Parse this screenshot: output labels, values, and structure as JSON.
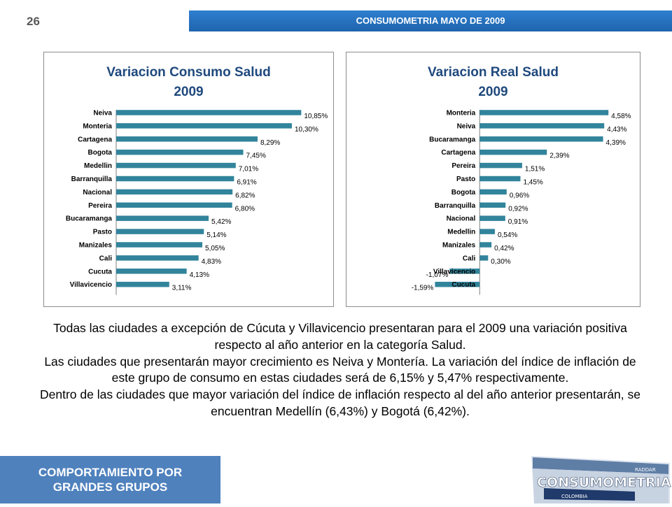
{
  "header": {
    "page_number": "26",
    "title": "CONSUMOMETRIA MAYO DE 2009"
  },
  "colors": {
    "bar": "#31849b",
    "header": "#1f64ad",
    "footer": "#4f81bd",
    "title_text": "#1f497d"
  },
  "chart_data": [
    {
      "type": "bar",
      "orientation": "horizontal",
      "title": "Variacion Consumo Salud",
      "subtitle": "2009",
      "grid": false,
      "legend": "none",
      "categories": [
        "Neiva",
        "Monteria",
        "Cartagena",
        "Bogota",
        "Medellin",
        "Barranquilla",
        "Nacional",
        "Pereira",
        "Bucaramanga",
        "Pasto",
        "Manizales",
        "Cali",
        "Cucuta",
        "Villavicencio"
      ],
      "values": [
        10.85,
        10.3,
        8.29,
        7.45,
        7.01,
        6.91,
        6.82,
        6.8,
        5.42,
        5.14,
        5.05,
        4.83,
        4.13,
        3.11
      ],
      "labels": [
        "10,85%",
        "10,30%",
        "8,29%",
        "7,45%",
        "7,01%",
        "6,91%",
        "6,82%",
        "6,80%",
        "5,42%",
        "5,14%",
        "5,05%",
        "4,83%",
        "4,13%",
        "3,11%"
      ],
      "xlim": [
        0,
        11
      ]
    },
    {
      "type": "bar",
      "orientation": "horizontal",
      "title": "Variacion Real Salud",
      "subtitle": "2009",
      "grid": false,
      "legend": "none",
      "categories": [
        "Monteria",
        "Neiva",
        "Bucaramanga",
        "Cartagena",
        "Pereira",
        "Pasto",
        "Bogota",
        "Barranquilla",
        "Nacional",
        "Medellin",
        "Manizales",
        "Cali",
        "Villavicencio",
        "Cucuta"
      ],
      "values": [
        4.58,
        4.43,
        4.39,
        2.39,
        1.51,
        1.45,
        0.96,
        0.92,
        0.91,
        0.54,
        0.42,
        0.3,
        -1.07,
        -1.59
      ],
      "labels": [
        "4,58%",
        "4,43%",
        "4,39%",
        "2,39%",
        "1,51%",
        "1,45%",
        "0,96%",
        "0,92%",
        "0,91%",
        "0,54%",
        "0,42%",
        "0,30%",
        "-1,07%",
        "-1,59%"
      ],
      "xlim": [
        -1.6,
        4.7
      ]
    }
  ],
  "body": {
    "p1": "Todas las ciudades a excepción de Cúcuta y Villavicencio presentaran para el 2009 una variación positiva respecto al año anterior en la categoría Salud.",
    "p2": "Las ciudades que presentarán mayor crecimiento es Neiva y Montería. La variación del índice de inflación de este grupo de consumo  en estas ciudades será de 6,15% y 5,47% respectivamente.",
    "p3": "Dentro de las ciudades que mayor variación del índice de inflación respecto al del año anterior presentarán, se encuentran Medellín (6,43%) y Bogotá (6,42%)."
  },
  "footer": {
    "line1": "COMPORTAMIENTO POR",
    "line2": "GRANDES GRUPOS"
  },
  "logo": {
    "text": "CONSUMOMETRIA",
    "small_text": "RADDAR",
    "sub_text": "COLOMBIA"
  }
}
